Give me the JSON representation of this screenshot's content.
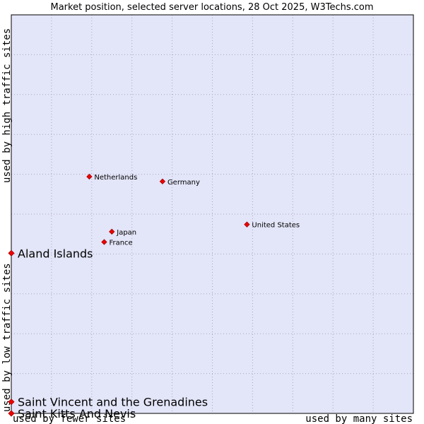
{
  "chart_data": {
    "type": "scatter",
    "title": "Market position, selected server locations, 28 Oct 2025, W3Techs.com",
    "xlabel_low": "used by fewer sites",
    "xlabel_high": "used by many sites",
    "ylabel_low": "used by low traffic sites",
    "ylabel_high": "used by high traffic sites",
    "xlim": [
      0,
      100
    ],
    "ylim": [
      0,
      100
    ],
    "grid": true,
    "colors": {
      "plot_bg": "#e3e5f8",
      "grid": "#a8a8c0",
      "point": "#ee0000",
      "point_stroke": "#a00000"
    },
    "points": [
      {
        "name": "Netherlands",
        "x": 19.4,
        "y": 59.4,
        "highlight": false
      },
      {
        "name": "Germany",
        "x": 37.6,
        "y": 58.2,
        "highlight": false
      },
      {
        "name": "United States",
        "x": 58.6,
        "y": 47.4,
        "highlight": false
      },
      {
        "name": "Japan",
        "x": 25.0,
        "y": 45.6,
        "highlight": false
      },
      {
        "name": "France",
        "x": 23.1,
        "y": 43.0,
        "highlight": false
      },
      {
        "name": "Aland Islands",
        "x": 0.0,
        "y": 40.2,
        "highlight": true
      },
      {
        "name": "Saint Vincent and the Grenadines",
        "x": 0.0,
        "y": 2.9,
        "highlight": true
      },
      {
        "name": "Saint Kitts And Nevis",
        "x": 0.0,
        "y": 0.0,
        "highlight": true
      }
    ]
  }
}
